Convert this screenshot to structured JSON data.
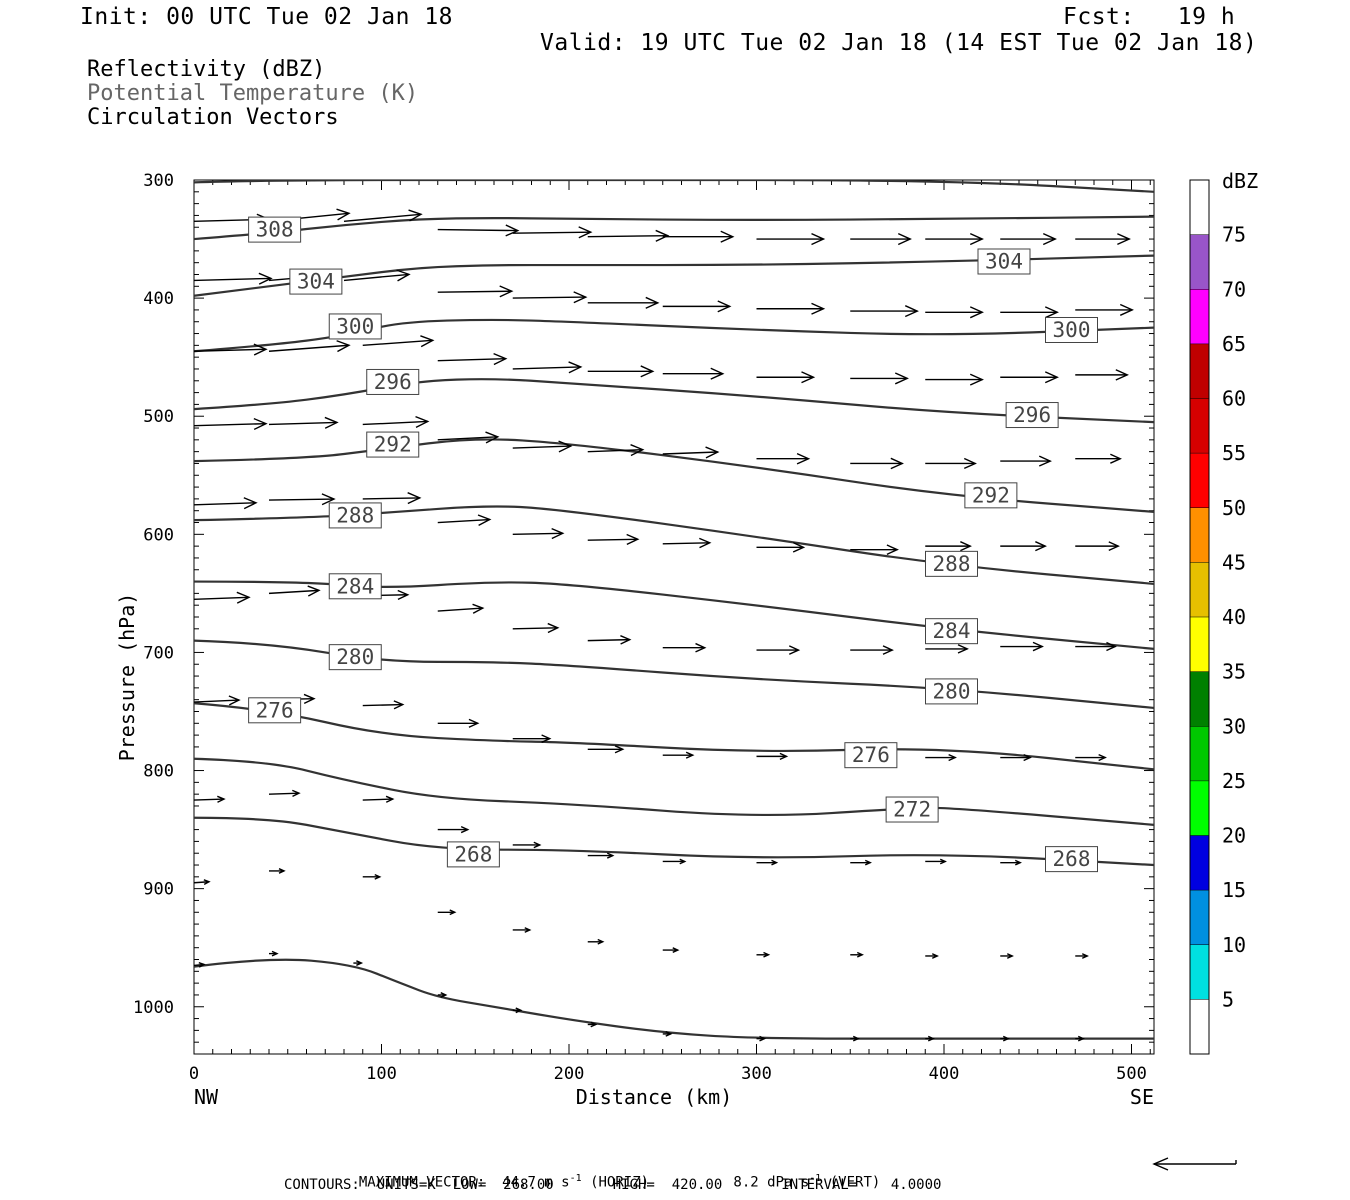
{
  "header": {
    "init": "Init: 00 UTC Tue 02 Jan 18",
    "fcst": "Fcst:   19 h",
    "valid": "Valid: 19 UTC Tue 02 Jan 18 (14 EST Tue 02 Jan 18)"
  },
  "legend": {
    "reflectivity": "Reflectivity (dBZ)",
    "theta": "Potential Temperature (K)",
    "vectors": "Circulation Vectors"
  },
  "footer": {
    "max_vector_prefix": "MAXIMUM VECTOR:",
    "horiz": "44.7 m s",
    "horiz_sup": "-1",
    "horiz_suffix": "(HORIZ)",
    "vert": "8.2 dPa s",
    "vert_sup": "-1",
    "vert_suffix": "(VERT)",
    "contours": "CONTOURS:  UNITS=K  LOW=  268.00       HIGH=  420.00       INTERVAL=    4.0000"
  },
  "colorbar": {
    "title": "dBZ",
    "levels": [
      "5",
      "10",
      "15",
      "20",
      "25",
      "30",
      "35",
      "40",
      "45",
      "50",
      "55",
      "60",
      "65",
      "70",
      "75"
    ],
    "colors": [
      "#00e0e0",
      "#0090e0",
      "#0000e0",
      "#00ff00",
      "#00c800",
      "#008000",
      "#ffff00",
      "#e6c000",
      "#ff9000",
      "#ff0000",
      "#d60000",
      "#c00000",
      "#ff00ff",
      "#9955c9",
      "#ffffff"
    ]
  },
  "chart_data": {
    "type": "line",
    "xlabel": "Distance (km)",
    "ylabel": "Pressure (hPa)",
    "xlim": [
      0,
      512
    ],
    "ylim": [
      1040,
      300
    ],
    "x_ticks": [
      "0",
      "100",
      "200",
      "300",
      "400",
      "500"
    ],
    "y_ticks": [
      "300",
      "400",
      "500",
      "600",
      "700",
      "800",
      "900",
      "1000"
    ],
    "x_end_labels": {
      "left": "NW",
      "right": "SE"
    },
    "series": [
      {
        "name": "308",
        "points": [
          [
            0,
            350
          ],
          [
            40,
            345
          ],
          [
            80,
            338
          ],
          [
            120,
            333
          ],
          [
            160,
            332
          ],
          [
            200,
            333
          ],
          [
            300,
            334
          ],
          [
            400,
            333
          ],
          [
            512,
            331
          ]
        ],
        "label_at": [
          43,
          342
        ]
      },
      {
        "name": "304",
        "points": [
          [
            0,
            398
          ],
          [
            40,
            390
          ],
          [
            80,
            382
          ],
          [
            120,
            374
          ],
          [
            160,
            372
          ],
          [
            200,
            372
          ],
          [
            300,
            372
          ],
          [
            400,
            369
          ],
          [
            512,
            364
          ]
        ],
        "label_at": [
          65,
          386
        ]
      },
      {
        "name": "300",
        "points": [
          [
            0,
            445
          ],
          [
            40,
            440
          ],
          [
            80,
            432
          ],
          [
            110,
            420
          ],
          [
            160,
            418
          ],
          [
            200,
            420
          ],
          [
            300,
            427
          ],
          [
            400,
            432
          ],
          [
            512,
            425
          ]
        ],
        "label_at": [
          86,
          424
        ]
      },
      {
        "name": "296",
        "points": [
          [
            0,
            494
          ],
          [
            40,
            490
          ],
          [
            80,
            482
          ],
          [
            120,
            470
          ],
          [
            160,
            468
          ],
          [
            200,
            472
          ],
          [
            300,
            483
          ],
          [
            400,
            497
          ],
          [
            512,
            505
          ]
        ],
        "label_at": [
          106,
          471
        ]
      },
      {
        "name": "292",
        "points": [
          [
            0,
            538
          ],
          [
            60,
            536
          ],
          [
            100,
            528
          ],
          [
            150,
            518
          ],
          [
            200,
            523
          ],
          [
            300,
            543
          ],
          [
            400,
            567
          ],
          [
            512,
            581
          ]
        ],
        "label_at": [
          106,
          524
        ]
      },
      {
        "name": "288",
        "points": [
          [
            0,
            588
          ],
          [
            60,
            586
          ],
          [
            100,
            582
          ],
          [
            160,
            575
          ],
          [
            200,
            580
          ],
          [
            300,
            602
          ],
          [
            400,
            626
          ],
          [
            512,
            642
          ]
        ],
        "label_at": [
          86,
          584
        ]
      },
      {
        "name": "284",
        "points": [
          [
            0,
            640
          ],
          [
            60,
            640
          ],
          [
            100,
            646
          ],
          [
            160,
            640
          ],
          [
            200,
            642
          ],
          [
            300,
            660
          ],
          [
            400,
            680
          ],
          [
            512,
            697
          ]
        ],
        "label_at": [
          86,
          644
        ]
      },
      {
        "name": "280",
        "points": [
          [
            0,
            690
          ],
          [
            40,
            692
          ],
          [
            100,
            708
          ],
          [
            160,
            708
          ],
          [
            200,
            711
          ],
          [
            300,
            723
          ],
          [
            400,
            730
          ],
          [
            512,
            747
          ]
        ],
        "label_at": [
          86,
          704
        ]
      },
      {
        "name": "276",
        "points": [
          [
            0,
            743
          ],
          [
            40,
            748
          ],
          [
            100,
            770
          ],
          [
            160,
            775
          ],
          [
            200,
            776
          ],
          [
            300,
            785
          ],
          [
            400,
            780
          ],
          [
            512,
            799
          ]
        ],
        "label_at": [
          43,
          749
        ]
      },
      {
        "name": "272",
        "points": [
          [
            0,
            790
          ],
          [
            40,
            792
          ],
          [
            80,
            808
          ],
          [
            130,
            824
          ],
          [
            200,
            828
          ],
          [
            300,
            840
          ],
          [
            380,
            832
          ],
          [
            400,
            831
          ],
          [
            512,
            846
          ]
        ],
        "label_at": [
          383,
          833
        ]
      },
      {
        "name": "268",
        "points": [
          [
            0,
            840
          ],
          [
            40,
            840
          ],
          [
            80,
            852
          ],
          [
            130,
            867
          ],
          [
            200,
            867
          ],
          [
            300,
            875
          ],
          [
            400,
            870
          ],
          [
            512,
            880
          ]
        ],
        "label_at": [
          149,
          871
        ],
        "label_at2": [
          468,
          875
        ]
      },
      {
        "name": "",
        "points": [
          [
            0,
            966
          ],
          [
            40,
            958
          ],
          [
            85,
            964
          ],
          [
            110,
            980
          ],
          [
            130,
            992
          ],
          [
            160,
            1000
          ],
          [
            200,
            1011
          ],
          [
            250,
            1022
          ],
          [
            300,
            1027
          ],
          [
            400,
            1027
          ],
          [
            512,
            1027
          ]
        ]
      }
    ],
    "vectors": {
      "ref_vector": {
        "dx": -82,
        "dy": 4
      },
      "items": [
        [
          0,
          335,
          75,
          -2
        ],
        [
          40,
          335,
          80,
          -8
        ],
        [
          80,
          335,
          77,
          -7
        ],
        [
          130,
          342,
          80,
          1
        ],
        [
          170,
          345,
          78,
          -1
        ],
        [
          210,
          348,
          80,
          -1
        ],
        [
          250,
          348,
          70,
          0
        ],
        [
          300,
          350,
          67,
          0
        ],
        [
          350,
          350,
          60,
          0
        ],
        [
          390,
          350,
          57,
          0
        ],
        [
          430,
          350,
          55,
          0
        ],
        [
          470,
          350,
          54,
          0
        ],
        [
          0,
          385,
          77,
          -2
        ],
        [
          40,
          385,
          70,
          -6
        ],
        [
          80,
          385,
          65,
          -6
        ],
        [
          130,
          395,
          74,
          -1
        ],
        [
          170,
          400,
          73,
          -1
        ],
        [
          210,
          404,
          70,
          0
        ],
        [
          250,
          407,
          67,
          0
        ],
        [
          300,
          409,
          67,
          0
        ],
        [
          350,
          411,
          67,
          0
        ],
        [
          390,
          412,
          57,
          0
        ],
        [
          430,
          412,
          57,
          0
        ],
        [
          470,
          410,
          57,
          0
        ],
        [
          0,
          445,
          72,
          -2
        ],
        [
          40,
          445,
          80,
          -6
        ],
        [
          90,
          440,
          70,
          -5
        ],
        [
          130,
          453,
          68,
          -2
        ],
        [
          170,
          460,
          68,
          -2
        ],
        [
          210,
          462,
          65,
          0
        ],
        [
          250,
          464,
          60,
          0
        ],
        [
          300,
          467,
          57,
          0
        ],
        [
          350,
          468,
          57,
          0
        ],
        [
          390,
          469,
          57,
          0
        ],
        [
          430,
          467,
          57,
          0
        ],
        [
          470,
          465,
          52,
          0
        ],
        [
          0,
          508,
          72,
          -2
        ],
        [
          40,
          507,
          68,
          -2
        ],
        [
          90,
          507,
          65,
          -3
        ],
        [
          130,
          520,
          60,
          -3
        ],
        [
          170,
          527,
          58,
          -2
        ],
        [
          210,
          530,
          55,
          -2
        ],
        [
          250,
          532,
          55,
          -2
        ],
        [
          300,
          536,
          52,
          0
        ],
        [
          350,
          540,
          52,
          0
        ],
        [
          390,
          540,
          50,
          0
        ],
        [
          430,
          538,
          50,
          0
        ],
        [
          470,
          536,
          45,
          0
        ],
        [
          0,
          575,
          62,
          -2
        ],
        [
          40,
          571,
          65,
          -1
        ],
        [
          90,
          570,
          57,
          -1
        ],
        [
          130,
          590,
          52,
          -3
        ],
        [
          170,
          600,
          50,
          -1
        ],
        [
          210,
          605,
          50,
          -1
        ],
        [
          250,
          608,
          47,
          -1
        ],
        [
          300,
          611,
          47,
          0
        ],
        [
          350,
          613,
          47,
          0
        ],
        [
          390,
          610,
          45,
          0
        ],
        [
          430,
          610,
          45,
          0
        ],
        [
          470,
          610,
          43,
          0
        ],
        [
          0,
          655,
          55,
          -2
        ],
        [
          40,
          650,
          50,
          -3
        ],
        [
          90,
          652,
          45,
          -1
        ],
        [
          130,
          665,
          45,
          -3
        ],
        [
          170,
          680,
          45,
          -1
        ],
        [
          210,
          690,
          42,
          -1
        ],
        [
          250,
          696,
          42,
          0
        ],
        [
          300,
          698,
          42,
          0
        ],
        [
          350,
          698,
          42,
          0
        ],
        [
          390,
          697,
          42,
          0
        ],
        [
          430,
          695,
          42,
          0
        ],
        [
          470,
          695,
          40,
          0
        ],
        [
          0,
          742,
          45,
          -2
        ],
        [
          40,
          740,
          45,
          -1
        ],
        [
          90,
          745,
          40,
          -1
        ],
        [
          130,
          760,
          40,
          0
        ],
        [
          170,
          773,
          37,
          0
        ],
        [
          210,
          782,
          35,
          0
        ],
        [
          250,
          787,
          30,
          0
        ],
        [
          300,
          788,
          30,
          0
        ],
        [
          350,
          788,
          30,
          0
        ],
        [
          390,
          789,
          30,
          0
        ],
        [
          430,
          789,
          30,
          0
        ],
        [
          470,
          789,
          30,
          0
        ],
        [
          0,
          825,
          30,
          -1
        ],
        [
          40,
          820,
          30,
          -1
        ],
        [
          90,
          825,
          30,
          -1
        ],
        [
          130,
          850,
          30,
          0
        ],
        [
          170,
          863,
          27,
          0
        ],
        [
          210,
          872,
          25,
          0
        ],
        [
          250,
          877,
          22,
          0
        ],
        [
          300,
          878,
          20,
          0
        ],
        [
          350,
          878,
          20,
          0
        ],
        [
          390,
          877,
          20,
          0
        ],
        [
          430,
          878,
          20,
          0
        ],
        [
          470,
          878,
          20,
          0
        ],
        [
          0,
          895,
          15,
          -1
        ],
        [
          40,
          885,
          15,
          0
        ],
        [
          90,
          890,
          17,
          0
        ],
        [
          130,
          920,
          17,
          0
        ],
        [
          170,
          935,
          17,
          0
        ],
        [
          210,
          945,
          15,
          0
        ],
        [
          250,
          952,
          15,
          0
        ],
        [
          300,
          956,
          12,
          0
        ],
        [
          350,
          956,
          12,
          0
        ],
        [
          390,
          957,
          12,
          0
        ],
        [
          430,
          957,
          12,
          0
        ],
        [
          470,
          957,
          12,
          0
        ],
        [
          0,
          965,
          10,
          -1
        ],
        [
          40,
          955,
          8,
          0
        ],
        [
          85,
          963,
          8,
          0
        ],
        [
          130,
          990,
          8,
          0
        ],
        [
          170,
          1003,
          8,
          0
        ],
        [
          210,
          1015,
          8,
          0
        ],
        [
          250,
          1023,
          8,
          0
        ],
        [
          300,
          1027,
          8,
          0
        ],
        [
          350,
          1027,
          8,
          0
        ],
        [
          390,
          1027,
          8,
          0
        ],
        [
          430,
          1027,
          8,
          0
        ],
        [
          470,
          1027,
          8,
          0
        ]
      ]
    }
  }
}
